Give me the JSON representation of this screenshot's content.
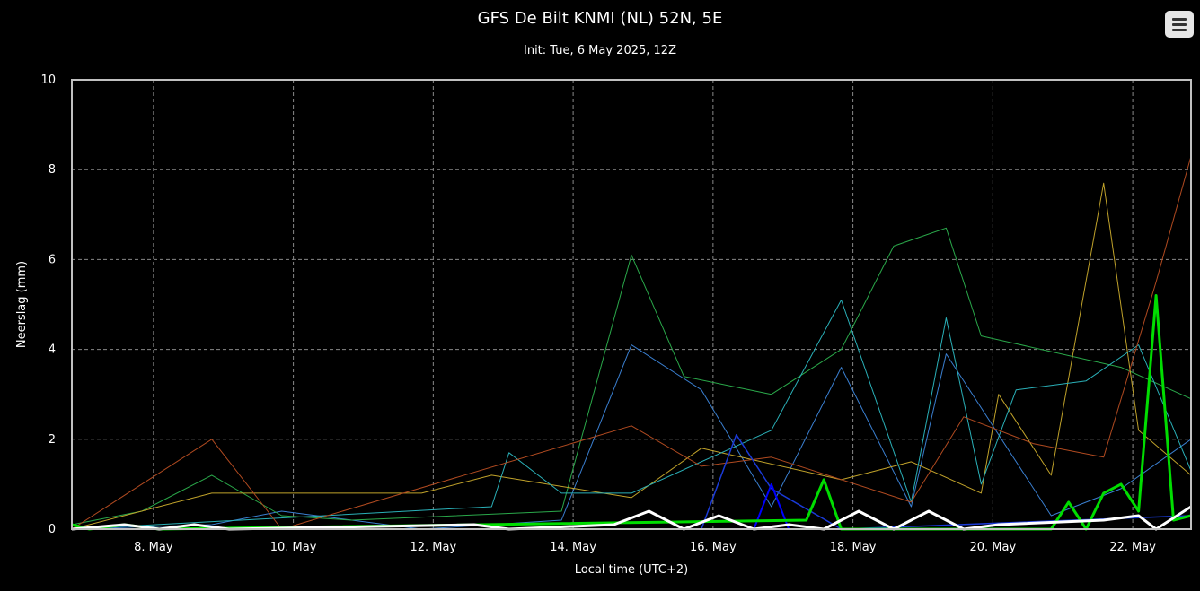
{
  "title": "GFS De Bilt KNMI (NL) 52N, 5E",
  "subtitle": "Init: Tue, 6 May 2025, 12Z",
  "menu": {
    "icon": "hamburger-menu-icon"
  },
  "chart_data": {
    "type": "line",
    "title": "GFS De Bilt KNMI (NL) 52N, 5E",
    "subtitle": "Init: Tue, 6 May 2025, 12Z",
    "xlabel": "Local time (UTC+2)",
    "ylabel": "Neerslag (mm)",
    "ylim": [
      0,
      10
    ],
    "yticks": [
      "0",
      "2",
      "4",
      "6",
      "8",
      "10"
    ],
    "xlim": [
      "2025-05-06 20:00",
      "2025-05-22 20:00"
    ],
    "xticks": [
      {
        "t": "2025-05-08 00:00",
        "label": "8. May"
      },
      {
        "t": "2025-05-10 00:00",
        "label": "10. May"
      },
      {
        "t": "2025-05-12 00:00",
        "label": "12. May"
      },
      {
        "t": "2025-05-14 00:00",
        "label": "14. May"
      },
      {
        "t": "2025-05-16 00:00",
        "label": "16. May"
      },
      {
        "t": "2025-05-18 00:00",
        "label": "18. May"
      },
      {
        "t": "2025-05-20 00:00",
        "label": "20. May"
      },
      {
        "t": "2025-05-22 00:00",
        "label": "22. May"
      }
    ],
    "grid": true,
    "background": "#000000",
    "series": [
      {
        "color": "#3a7fd0",
        "width": 1,
        "points": [
          [
            "2025-05-06 20:00",
            0
          ],
          [
            "2025-05-08 20:00",
            0.1
          ],
          [
            "2025-05-09 20:00",
            0.4
          ],
          [
            "2025-05-11 20:00",
            0
          ],
          [
            "2025-05-13 20:00",
            0.2
          ],
          [
            "2025-05-14 20:00",
            4.1
          ],
          [
            "2025-05-15 20:00",
            3.1
          ],
          [
            "2025-05-16 20:00",
            0.5
          ],
          [
            "2025-05-17 20:00",
            3.6
          ],
          [
            "2025-05-18 20:00",
            0.5
          ],
          [
            "2025-05-19 08:00",
            3.9
          ],
          [
            "2025-05-20 20:00",
            0.3
          ],
          [
            "2025-05-21 20:00",
            0.9
          ],
          [
            "2025-05-22 20:00",
            2.0
          ]
        ]
      },
      {
        "color": "#2aa84a",
        "width": 1,
        "points": [
          [
            "2025-05-06 20:00",
            0.1
          ],
          [
            "2025-05-07 20:00",
            0.4
          ],
          [
            "2025-05-08 20:00",
            1.2
          ],
          [
            "2025-05-09 20:00",
            0.3
          ],
          [
            "2025-05-10 20:00",
            0.2
          ],
          [
            "2025-05-13 20:00",
            0.4
          ],
          [
            "2025-05-14 20:00",
            6.1
          ],
          [
            "2025-05-15 14:00",
            3.4
          ],
          [
            "2025-05-16 20:00",
            3.0
          ],
          [
            "2025-05-17 20:00",
            4.0
          ],
          [
            "2025-05-18 14:00",
            6.3
          ],
          [
            "2025-05-19 08:00",
            6.7
          ],
          [
            "2025-05-19 20:00",
            4.3
          ],
          [
            "2025-05-21 20:00",
            3.6
          ],
          [
            "2025-05-22 20:00",
            2.9
          ]
        ]
      },
      {
        "color": "#c0a22a",
        "width": 1,
        "points": [
          [
            "2025-05-06 20:00",
            0
          ],
          [
            "2025-05-08 20:00",
            0.8
          ],
          [
            "2025-05-11 20:00",
            0.8
          ],
          [
            "2025-05-12 20:00",
            1.2
          ],
          [
            "2025-05-14 20:00",
            0.7
          ],
          [
            "2025-05-15 20:00",
            1.8
          ],
          [
            "2025-05-17 20:00",
            1.1
          ],
          [
            "2025-05-18 20:00",
            1.5
          ],
          [
            "2025-05-19 20:00",
            0.8
          ],
          [
            "2025-05-20 02:00",
            3.0
          ],
          [
            "2025-05-20 20:00",
            1.2
          ],
          [
            "2025-05-21 14:00",
            7.7
          ],
          [
            "2025-05-22 02:00",
            2.2
          ],
          [
            "2025-05-22 20:00",
            1.2
          ]
        ]
      },
      {
        "color": "#2ab0b8",
        "width": 1,
        "points": [
          [
            "2025-05-06 20:00",
            0
          ],
          [
            "2025-05-12 20:00",
            0.5
          ],
          [
            "2025-05-13 02:00",
            1.7
          ],
          [
            "2025-05-13 20:00",
            0.8
          ],
          [
            "2025-05-14 20:00",
            0.8
          ],
          [
            "2025-05-16 20:00",
            2.2
          ],
          [
            "2025-05-17 20:00",
            5.1
          ],
          [
            "2025-05-18 20:00",
            0.6
          ],
          [
            "2025-05-19 08:00",
            4.7
          ],
          [
            "2025-05-19 20:00",
            1.0
          ],
          [
            "2025-05-20 08:00",
            3.1
          ],
          [
            "2025-05-21 08:00",
            3.3
          ],
          [
            "2025-05-22 02:00",
            4.1
          ],
          [
            "2025-05-22 20:00",
            1.3
          ]
        ]
      },
      {
        "color": "#b04a20",
        "width": 1,
        "points": [
          [
            "2025-05-06 20:00",
            0
          ],
          [
            "2025-05-08 20:00",
            2.0
          ],
          [
            "2025-05-09 20:00",
            0
          ],
          [
            "2025-05-14 20:00",
            2.3
          ],
          [
            "2025-05-15 20:00",
            1.4
          ],
          [
            "2025-05-16 20:00",
            1.6
          ],
          [
            "2025-05-18 20:00",
            0.6
          ],
          [
            "2025-05-19 14:00",
            2.5
          ],
          [
            "2025-05-20 14:00",
            1.9
          ],
          [
            "2025-05-21 14:00",
            1.6
          ],
          [
            "2025-05-22 08:00",
            5.5
          ],
          [
            "2025-05-22 20:00",
            8.3
          ]
        ]
      },
      {
        "color": "#1a3ad8",
        "width": 1.5,
        "points": [
          [
            "2025-05-06 20:00",
            0
          ],
          [
            "2025-05-15 20:00",
            0
          ],
          [
            "2025-05-16 08:00",
            2.1
          ],
          [
            "2025-05-16 20:00",
            0.9
          ],
          [
            "2025-05-17 20:00",
            0
          ],
          [
            "2025-05-22 20:00",
            0.3
          ]
        ]
      },
      {
        "color": "#0000ff",
        "width": 2,
        "points": [
          [
            "2025-05-06 20:00",
            0
          ],
          [
            "2025-05-16 14:00",
            0
          ],
          [
            "2025-05-16 20:00",
            1.0
          ],
          [
            "2025-05-17 02:00",
            0
          ],
          [
            "2025-05-22 20:00",
            0
          ]
        ]
      },
      {
        "color": "#00dd00",
        "width": 3,
        "points": [
          [
            "2025-05-06 20:00",
            0.1
          ],
          [
            "2025-05-07 02:00",
            0
          ],
          [
            "2025-05-07 14:00",
            0.1
          ],
          [
            "2025-05-08 02:00",
            0
          ],
          [
            "2025-05-17 08:00",
            0.2
          ],
          [
            "2025-05-17 14:00",
            1.1
          ],
          [
            "2025-05-17 20:00",
            0
          ],
          [
            "2025-05-20 20:00",
            0
          ],
          [
            "2025-05-21 02:00",
            0.6
          ],
          [
            "2025-05-21 08:00",
            0
          ],
          [
            "2025-05-21 14:00",
            0.8
          ],
          [
            "2025-05-21 20:00",
            1.0
          ],
          [
            "2025-05-22 02:00",
            0.4
          ],
          [
            "2025-05-22 08:00",
            5.2
          ],
          [
            "2025-05-22 14:00",
            0.2
          ],
          [
            "2025-05-22 20:00",
            0.3
          ]
        ]
      },
      {
        "color": "#ffffff",
        "width": 3,
        "points": [
          [
            "2025-05-06 20:00",
            0
          ],
          [
            "2025-05-07 14:00",
            0.1
          ],
          [
            "2025-05-08 02:00",
            0
          ],
          [
            "2025-05-08 14:00",
            0.1
          ],
          [
            "2025-05-09 02:00",
            0
          ],
          [
            "2025-05-12 14:00",
            0.1
          ],
          [
            "2025-05-13 02:00",
            0
          ],
          [
            "2025-05-14 14:00",
            0.1
          ],
          [
            "2025-05-15 02:00",
            0.4
          ],
          [
            "2025-05-15 14:00",
            0
          ],
          [
            "2025-05-16 02:00",
            0.3
          ],
          [
            "2025-05-16 14:00",
            0
          ],
          [
            "2025-05-17 02:00",
            0.1
          ],
          [
            "2025-05-17 14:00",
            0
          ],
          [
            "2025-05-18 02:00",
            0.4
          ],
          [
            "2025-05-18 14:00",
            0
          ],
          [
            "2025-05-19 02:00",
            0.4
          ],
          [
            "2025-05-19 14:00",
            0
          ],
          [
            "2025-05-20 02:00",
            0.1
          ],
          [
            "2025-05-21 14:00",
            0.2
          ],
          [
            "2025-05-22 02:00",
            0.3
          ],
          [
            "2025-05-22 08:00",
            0
          ],
          [
            "2025-05-22 20:00",
            0.5
          ]
        ]
      }
    ]
  }
}
